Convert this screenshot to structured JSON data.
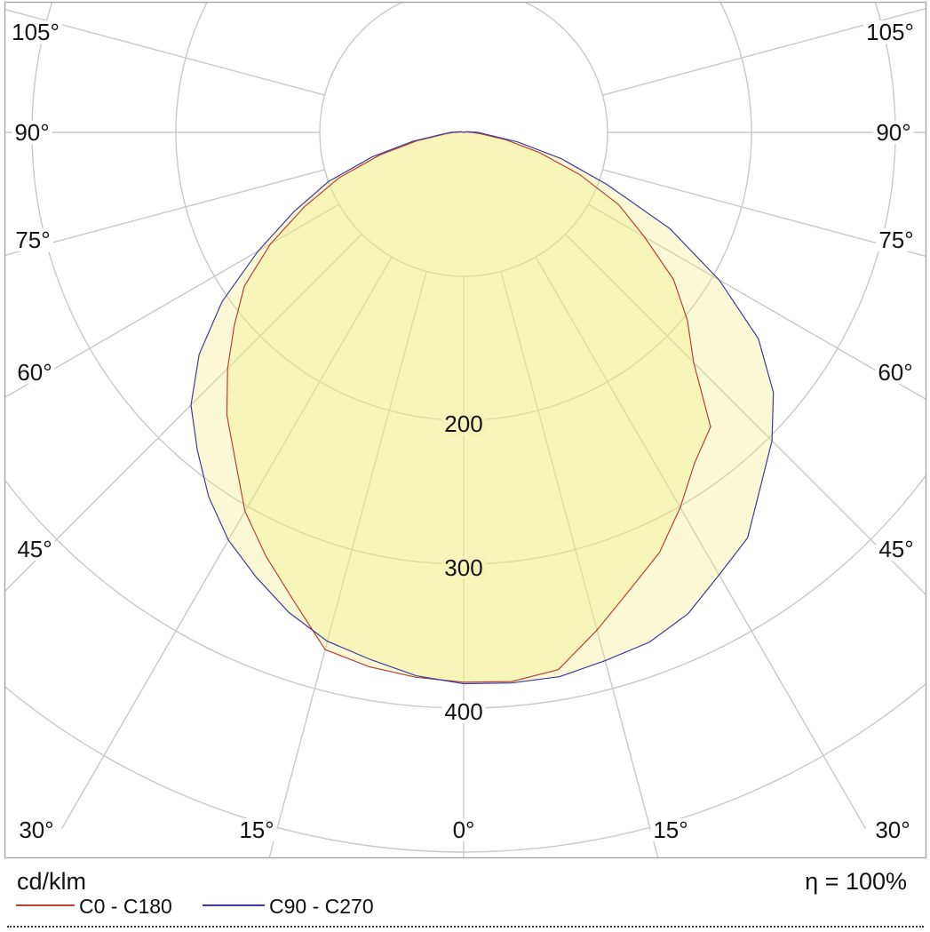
{
  "chart_data": {
    "type": "line",
    "subtype": "polar-photometric-intensity-distribution",
    "unit_label": "cd/klm",
    "efficiency_text": "η = 100%",
    "angle_ticks_deg": [
      0,
      15,
      30,
      45,
      60,
      75,
      90,
      105
    ],
    "angle_tick_suffix": "°",
    "radial_ticks_cd_klm": [
      100,
      200,
      300,
      400,
      500
    ],
    "radial_tick_labels": [
      "200",
      "300",
      "400"
    ],
    "gamma_deg": [
      0,
      5,
      10,
      15,
      20,
      25,
      30,
      35,
      40,
      45,
      50,
      55,
      60,
      65,
      70,
      75,
      80,
      85,
      90,
      95,
      100,
      105
    ],
    "series": [
      {
        "name": "C0 - C180",
        "color": "#B8413B",
        "left_values_cd_klm": [
          382,
          380,
          377,
          372,
          346,
          325,
          304,
          277,
          256,
          232,
          208,
          186,
          155,
          122,
          92,
          60,
          32,
          13,
          7,
          3,
          2,
          1
        ],
        "right_values_cd_klm": [
          382,
          383,
          379,
          358,
          338,
          322,
          301,
          280,
          267,
          226,
          203,
          178,
          145,
          119,
          86,
          55,
          30,
          12,
          6,
          3,
          2,
          1
        ]
      },
      {
        "name": "C90 - C270",
        "color": "#3C3C9C",
        "left_values_cd_klm": [
          383,
          379,
          372,
          366,
          355,
          341,
          327,
          309,
          288,
          268,
          240,
          205,
          165,
          130,
          100,
          66,
          36,
          15,
          9,
          4,
          2,
          1
        ],
        "right_values_cd_klm": [
          383,
          384,
          384,
          380,
          377,
          369,
          355,
          344,
          321,
          303,
          281,
          250,
          205,
          158,
          106,
          70,
          38,
          16,
          10,
          4,
          2,
          1
        ]
      }
    ],
    "fill_color_rgba": "rgba(243,235,125,0.32)",
    "overlap_fill_hex": "#F8F4B9",
    "grid_color": "#C9C9C9",
    "border_color": "#A8A8A8",
    "legend_position": "bottom",
    "axis_convention": "0° at nadir (bottom), angles increase toward horizontal (90°) and beyond to 105° on both sides; radius = luminous intensity in cd/klm"
  }
}
